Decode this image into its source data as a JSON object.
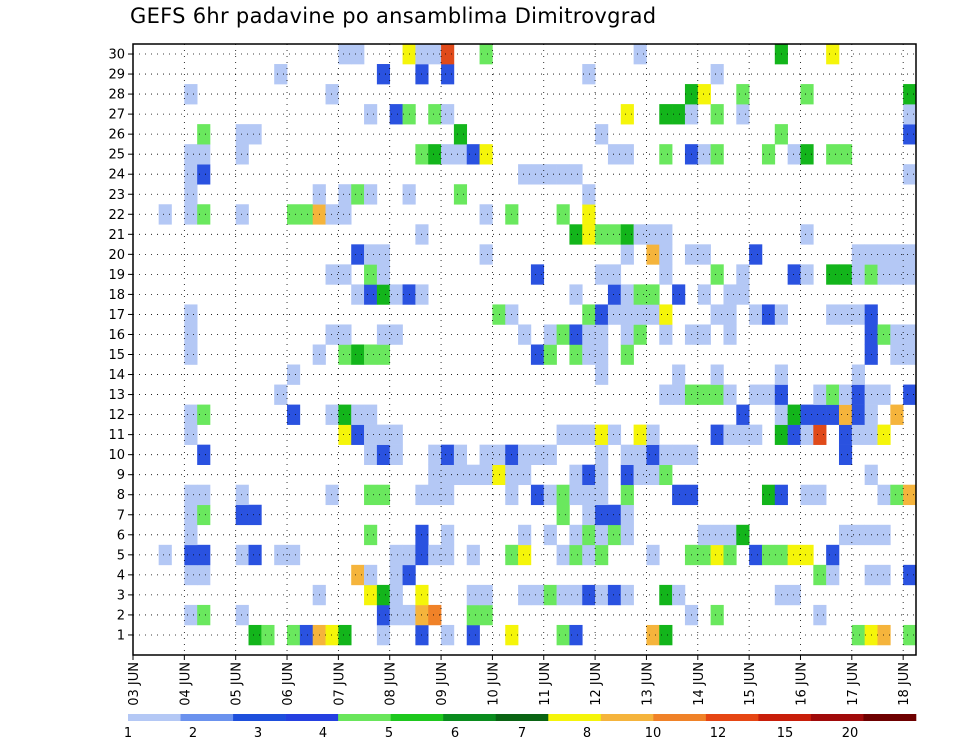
{
  "chart_data": {
    "type": "heatmap",
    "title": "GEFS 6hr padavine po ansamblima Dimitrovgrad",
    "xlabel": "",
    "ylabel": "",
    "x_tick_labels": [
      "03 JUN",
      "04 JUN",
      "05 JUN",
      "06 JUN",
      "07 JUN",
      "08 JUN",
      "09 JUN",
      "10 JUN",
      "11 JUN",
      "12 JUN",
      "13 JUN",
      "14 JUN",
      "15 JUN",
      "16 JUN",
      "17 JUN",
      "18 JUN"
    ],
    "y_tick_labels": [
      "1",
      "2",
      "3",
      "4",
      "5",
      "6",
      "7",
      "8",
      "9",
      "10",
      "11",
      "12",
      "13",
      "14",
      "15",
      "16",
      "17",
      "18",
      "19",
      "20",
      "21",
      "22",
      "23",
      "24",
      "25",
      "26",
      "27",
      "28",
      "29",
      "30"
    ],
    "members": 30,
    "steps_per_day": 4,
    "time_steps": 61,
    "grid": true,
    "colorbar": {
      "position": "bottom",
      "labels": [
        "1",
        "2",
        "3",
        "4",
        "5",
        "6",
        "7",
        "8",
        "10",
        "12",
        "15",
        "20"
      ],
      "colors": [
        "#b4c8f5",
        "#6b92ee",
        "#1e4fdc",
        "#2540e0",
        "#69e65b",
        "#1ec81e",
        "#0a8c1e",
        "#0a6414",
        "#f5f50a",
        "#f5b43c",
        "#f08228",
        "#e64614",
        "#c81e0a",
        "#a00a0a",
        "#6e0000"
      ]
    },
    "member_rows": {
      "30": "................bb...ynOr..g...........e..........G...y.........bbBB..........g...................",
      "29": "...........b.......B..B.B..........e.........b....................B.......bgG.....b................",
      "28": "....b..........b...........................Gy..g....g.......G..........................y.B..Bo",
      "27": "..................b.Bg.gb.............y..GGb.g.b............b...bbybBby.B........b.........",
      "26": ".....g..bb...............G..........b.............g.........BgB.gg.............gb.bog",
      "25": "....bb..b.............gGbbBy.........bb..g.Bbg...g.bG.gg...........b...........bbb",
      "24": "....bB........................bbbbb.........................bg..yG....Gbb.......bG",
      "23": "....b.........b.bgb..b...g.........b...........................................b.gb",
      "22": "..b.bg..b...ggobb..........b.g...g.y...........................bbgbb.gB.g...b.......",
      "21": "......................b...........GyggGbbb..........b...................................b",
      "20": ".................Bbb.......b..........b.ob.bb...B.......bbbbbg.gbb.gg..bb.g.........b",
      "19": "...............bb.gb...........B....bb...b...g.b...Bb.GGbgbbbb..b.bg......bbbbBg",
      "18": ".................bBGbBb...........b..Bbgg.B.b.bb...............y.oB.bb.............bg",
      "17": "....b.......................gb.....gBbbbby...bb.bBb...bbbB............bb......b.....b",
      "16": "....b..........bb..bb.........b.bgBbb.bg.b.bb.b..........BgbbbbGbbbbbb........BB",
      "15": "....b.........b.gGgg...........Bg.gbb.g..................B.bb..b.........gB..BB.gbbB",
      "14": "............b.......................b.....b..b....b.....b.....bb..b.........BB..b",
      "13": "...........b.............................bbgggb.bbB..bgbBbb.B.g...........b...ob",
      "12": "....bg......B..bGbb............................B..bGBBBoBb.o..gBbbbg..g..b.bb.b",
      "11": "....b...........yBbbb............bbbyb.yb....Bbbb.GBbr.Bbby..b.......g....b..bB",
      "10": ".....B............bBb..bBb.bbBbbb...b.bbBbbb...........B.......b....bB....b",
      "9": ".......................bbbbbybb...bBb.Bbbg...............b.....b.b.bB.b",
      "8": "....bb..b......b..gg..bbb....b.Bbgbbb.g...BB.....GB.bb....bgo..bB......b",
      "7": "....bg..BB.......................g.bBBb.......................b.......bb.......bob",
      "6": "....b.............g...B.b.....b.b.bgbgb.....bbbG.......bbbb..........b.........bb",
      "5": "..b.BB..bB.bb.......bbBbb.b..gy..bgbg...b..ggyg.Bggyy.B........bb.b.b.......bb",
      "4": "....bb...........ob.bB...............................gb..bb.B..by.bbb.bB.BB........b",
      "3": "..............b...yGb.y...bb..bbgbbBbBb..Gb.......bb..........................b",
      "2": "....bg..b..........Bbboi..gg...............b.g.......b.......b....b...........b",
      "1": ".........Gg.gBoyG..b..B.b.B..y...gB.....oG..............gyo.gd.o.rg.....b.b"
    }
  }
}
